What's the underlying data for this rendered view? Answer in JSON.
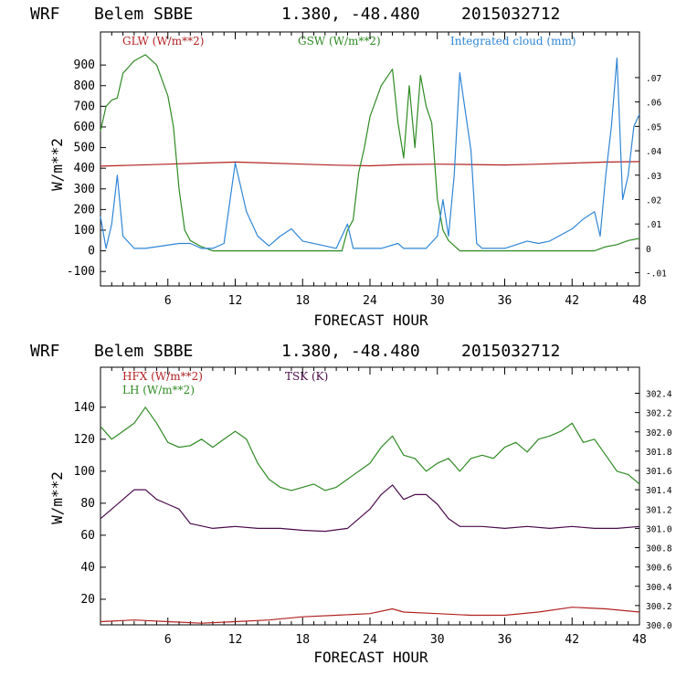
{
  "chart_data": [
    {
      "type": "line",
      "header": {
        "model": "WRF",
        "station": "Belem SBBE",
        "coords": "1.380, -48.480",
        "run": "2015032712"
      },
      "xlabel": "FORECAST HOUR",
      "ylabel": "W/m**2",
      "xlim": [
        0,
        48
      ],
      "ylim": [
        -170,
        1060
      ],
      "y2lim": [
        -0.0154,
        0.0887
      ],
      "xticks": [
        "6",
        "12",
        "18",
        "24",
        "30",
        "36",
        "42",
        "48"
      ],
      "yticks": [
        "-100",
        "0",
        "100",
        "200",
        "300",
        "400",
        "500",
        "600",
        "700",
        "800",
        "900"
      ],
      "y2ticks": [
        "-.01",
        "0",
        ".01",
        ".02",
        ".03",
        ".04",
        ".05",
        ".06",
        ".07"
      ],
      "legend": {
        "glw": "GLW (W/m**2)",
        "gsw": "GSW (W/m**2)",
        "cloud": "Integrated cloud (mm)"
      },
      "colors": {
        "glw": "#b22222",
        "gsw": "#2e8b22",
        "cloud": "#2f86d6"
      },
      "series": [
        {
          "name": "GLW (W/m**2)",
          "axis": "left",
          "x": [
            0,
            3,
            6,
            9,
            12,
            15,
            18,
            21,
            24,
            27,
            30,
            33,
            36,
            39,
            42,
            45,
            48
          ],
          "values": [
            410,
            415,
            420,
            425,
            430,
            425,
            420,
            415,
            412,
            418,
            420,
            418,
            416,
            420,
            425,
            430,
            432
          ]
        },
        {
          "name": "GSW (W/m**2)",
          "axis": "left",
          "x": [
            0,
            0.5,
            1,
            1.5,
            2,
            3,
            4,
            5,
            6,
            6.5,
            7,
            7.5,
            8,
            9,
            10,
            11,
            12,
            18,
            21.5,
            22,
            22.5,
            23,
            23.5,
            24,
            25,
            26,
            26.5,
            27,
            27.5,
            28,
            28.5,
            29,
            29.5,
            30,
            30.5,
            31,
            32,
            33,
            44,
            45,
            46,
            47,
            48
          ],
          "values": [
            580,
            700,
            730,
            740,
            860,
            920,
            950,
            900,
            750,
            600,
            300,
            100,
            50,
            20,
            0,
            0,
            0,
            0,
            0,
            100,
            150,
            380,
            500,
            650,
            800,
            880,
            620,
            450,
            800,
            500,
            850,
            700,
            620,
            250,
            100,
            50,
            0,
            0,
            0,
            20,
            30,
            50,
            60
          ]
        },
        {
          "name": "Integrated cloud (mm)",
          "axis": "right",
          "x": [
            0,
            0.5,
            1,
            1.5,
            2,
            3,
            4,
            7,
            8,
            9,
            10,
            11,
            12,
            13,
            14,
            15,
            16,
            17,
            18,
            20,
            21,
            22,
            22.5,
            23,
            25,
            26.5,
            27,
            28,
            29,
            30,
            30.5,
            31,
            31.5,
            32,
            33,
            33.5,
            34,
            35,
            36,
            38,
            39,
            40,
            42,
            43,
            44,
            44.5,
            45,
            45.5,
            46,
            46.5,
            47,
            47.5,
            48
          ],
          "values": [
            0.013,
            0,
            0.01,
            0.03,
            0.005,
            0,
            0,
            0.002,
            0.002,
            0,
            0,
            0.002,
            0.035,
            0.015,
            0.005,
            0.001,
            0.005,
            0.008,
            0.003,
            0.001,
            0,
            0.01,
            0,
            0,
            0,
            0.002,
            0,
            0,
            0,
            0.005,
            0.02,
            0.005,
            0.03,
            0.072,
            0.04,
            0.002,
            0,
            0,
            0,
            0.003,
            0.002,
            0.003,
            0.008,
            0.012,
            0.015,
            0.005,
            0.03,
            0.05,
            0.078,
            0.02,
            0.03,
            0.05,
            0.055
          ]
        }
      ]
    },
    {
      "type": "line",
      "header": {
        "model": "WRF",
        "station": "Belem SBBE",
        "coords": "1.380, -48.480",
        "run": "2015032712"
      },
      "xlabel": "FORECAST HOUR",
      "ylabel": "W/m**2",
      "xlim": [
        0,
        48
      ],
      "ylim": [
        4,
        165
      ],
      "y2lim": [
        300.0,
        302.67
      ],
      "xticks": [
        "6",
        "12",
        "18",
        "24",
        "30",
        "36",
        "42",
        "48"
      ],
      "yticks": [
        "20",
        "40",
        "60",
        "80",
        "100",
        "120",
        "140"
      ],
      "y2ticks": [
        "300.0",
        "300.2",
        "300.4",
        "300.6",
        "300.8",
        "301.0",
        "301.2",
        "301.4",
        "301.6",
        "301.8",
        "302.0",
        "302.2",
        "302.4"
      ],
      "legend": {
        "hfx": "HFX (W/m**2)",
        "lh": "LH (W/m**2)",
        "tsk": "TSK (K)"
      },
      "colors": {
        "hfx": "#b22222",
        "lh": "#2e8b22",
        "tsk": "#4b0a4b"
      },
      "series": [
        {
          "name": "HFX (W/m**2)",
          "axis": "left",
          "x": [
            0,
            3,
            6,
            9,
            12,
            15,
            18,
            21,
            24,
            26,
            27,
            30,
            33,
            36,
            39,
            42,
            45,
            48
          ],
          "values": [
            6,
            7,
            6,
            5,
            6,
            7,
            9,
            10,
            11,
            14,
            12,
            11,
            10,
            10,
            12,
            15,
            14,
            12
          ]
        },
        {
          "name": "LH (W/m**2)",
          "axis": "left",
          "x": [
            0,
            1,
            2,
            3,
            4,
            5,
            6,
            7,
            8,
            9,
            10,
            11,
            12,
            13,
            14,
            15,
            16,
            17,
            18,
            19,
            20,
            21,
            22,
            23,
            24,
            25,
            26,
            27,
            28,
            29,
            30,
            31,
            32,
            33,
            34,
            35,
            36,
            37,
            38,
            39,
            40,
            41,
            42,
            43,
            44,
            45,
            46,
            47,
            48
          ],
          "values": [
            128,
            120,
            125,
            130,
            140,
            130,
            118,
            115,
            116,
            120,
            115,
            120,
            125,
            120,
            105,
            95,
            90,
            88,
            90,
            92,
            88,
            90,
            95,
            100,
            105,
            115,
            122,
            110,
            108,
            100,
            105,
            108,
            100,
            108,
            110,
            108,
            115,
            118,
            112,
            120,
            122,
            125,
            130,
            118,
            120,
            110,
            100,
            98,
            92
          ]
        },
        {
          "name": "TSK (K)",
          "axis": "right",
          "x": [
            0,
            1,
            2,
            3,
            4,
            5,
            6,
            7,
            8,
            10,
            12,
            14,
            16,
            18,
            20,
            22,
            23,
            24,
            25,
            26,
            27,
            28,
            29,
            30,
            31,
            32,
            34,
            36,
            38,
            40,
            42,
            44,
            46,
            48
          ],
          "values": [
            301.1,
            301.2,
            301.3,
            301.4,
            301.4,
            301.3,
            301.25,
            301.2,
            301.05,
            301.0,
            301.02,
            301.0,
            301.0,
            300.98,
            300.97,
            301.0,
            301.1,
            301.2,
            301.35,
            301.45,
            301.3,
            301.35,
            301.35,
            301.25,
            301.1,
            301.02,
            301.02,
            301.0,
            301.02,
            301.0,
            301.02,
            301.0,
            301.0,
            301.02
          ]
        }
      ]
    }
  ]
}
